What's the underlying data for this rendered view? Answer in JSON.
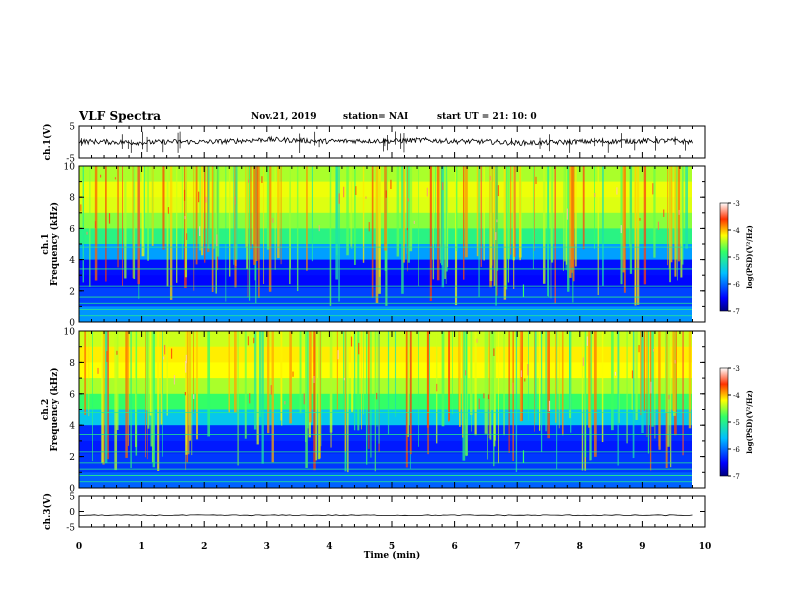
{
  "header": {
    "title": "VLF Spectra",
    "date": "Nov.21, 2019",
    "station": "station= NAI",
    "start": "start  UT =   21: 10: 0"
  },
  "chart_data": [
    {
      "type": "line",
      "ylabel": "ch.1(V)",
      "ylim": [
        -5,
        5
      ],
      "yticks": [
        "5",
        "-5"
      ],
      "x": [
        0,
        0.5,
        1,
        1.5,
        2,
        2.5,
        3,
        3.5,
        4,
        4.5,
        5,
        5.5,
        6,
        6.5,
        7,
        7.5,
        8,
        8.5,
        9,
        9.5,
        9.8
      ],
      "values": [
        0.2,
        0.0,
        -0.2,
        0.1,
        0.0,
        0.3,
        0.8,
        0.5,
        0.2,
        0.4,
        0.3,
        0.6,
        0.2,
        0.1,
        -0.3,
        -0.2,
        0.1,
        0.2,
        0.3,
        0.4,
        0.0
      ],
      "color": "#000000"
    },
    {
      "type": "heatmap",
      "ylabel": "ch.1\nFrequency (kHz)",
      "ylim": [
        0,
        10
      ],
      "yticks": [
        "0",
        "2",
        "4",
        "6",
        "8",
        "10"
      ],
      "xlim": [
        0,
        10
      ],
      "colorbar": {
        "label": "log(PSD)(V²/Hz)",
        "range": [
          -7,
          -3
        ],
        "ticks": [
          "-3",
          "-4",
          "-5",
          "-6",
          "-7"
        ]
      },
      "rows": [
        {
          "f": 10,
          "v": -4.6
        },
        {
          "f": 9,
          "v": -4.3
        },
        {
          "f": 8,
          "v": -4.2
        },
        {
          "f": 7,
          "v": -4.4
        },
        {
          "f": 6,
          "v": -4.7
        },
        {
          "f": 5,
          "v": -5.2
        },
        {
          "f": 4,
          "v": -6.3
        },
        {
          "f": 3,
          "v": -6.6
        },
        {
          "f": 2.2,
          "v": -6.4
        },
        {
          "f": 1,
          "v": -6.0
        },
        {
          "f": 0,
          "v": -5.6
        }
      ]
    },
    {
      "type": "heatmap",
      "ylabel": "ch.2\nFrequency (kHz)",
      "ylim": [
        0,
        10
      ],
      "yticks": [
        "0",
        "2",
        "4",
        "6",
        "8",
        "10"
      ],
      "xlim": [
        0,
        10
      ],
      "colorbar": {
        "label": "log(PSD)(V²/Hz)",
        "range": [
          -7,
          -3
        ],
        "ticks": [
          "-3",
          "-4",
          "-5",
          "-6",
          "-7"
        ]
      },
      "rows": [
        {
          "f": 10,
          "v": -4.5
        },
        {
          "f": 9,
          "v": -4.2
        },
        {
          "f": 8,
          "v": -4.1
        },
        {
          "f": 7,
          "v": -4.3
        },
        {
          "f": 6,
          "v": -4.6
        },
        {
          "f": 5,
          "v": -5.0
        },
        {
          "f": 4,
          "v": -6.0
        },
        {
          "f": 3,
          "v": -6.6
        },
        {
          "f": 2.2,
          "v": -6.2
        },
        {
          "f": 1,
          "v": -6.3
        },
        {
          "f": 0,
          "v": -5.8
        }
      ]
    },
    {
      "type": "line",
      "ylabel": "ch.3(V)",
      "ylim": [
        -5,
        5
      ],
      "yticks": [
        "5",
        "0",
        "-5"
      ],
      "x": [
        0,
        9.8
      ],
      "values": [
        -1.2,
        -1.2
      ],
      "color": "#000000"
    }
  ],
  "xaxis": {
    "label": "Time (min)",
    "ticks": [
      "0",
      "1",
      "2",
      "3",
      "4",
      "5",
      "6",
      "7",
      "8",
      "9",
      "10"
    ]
  }
}
